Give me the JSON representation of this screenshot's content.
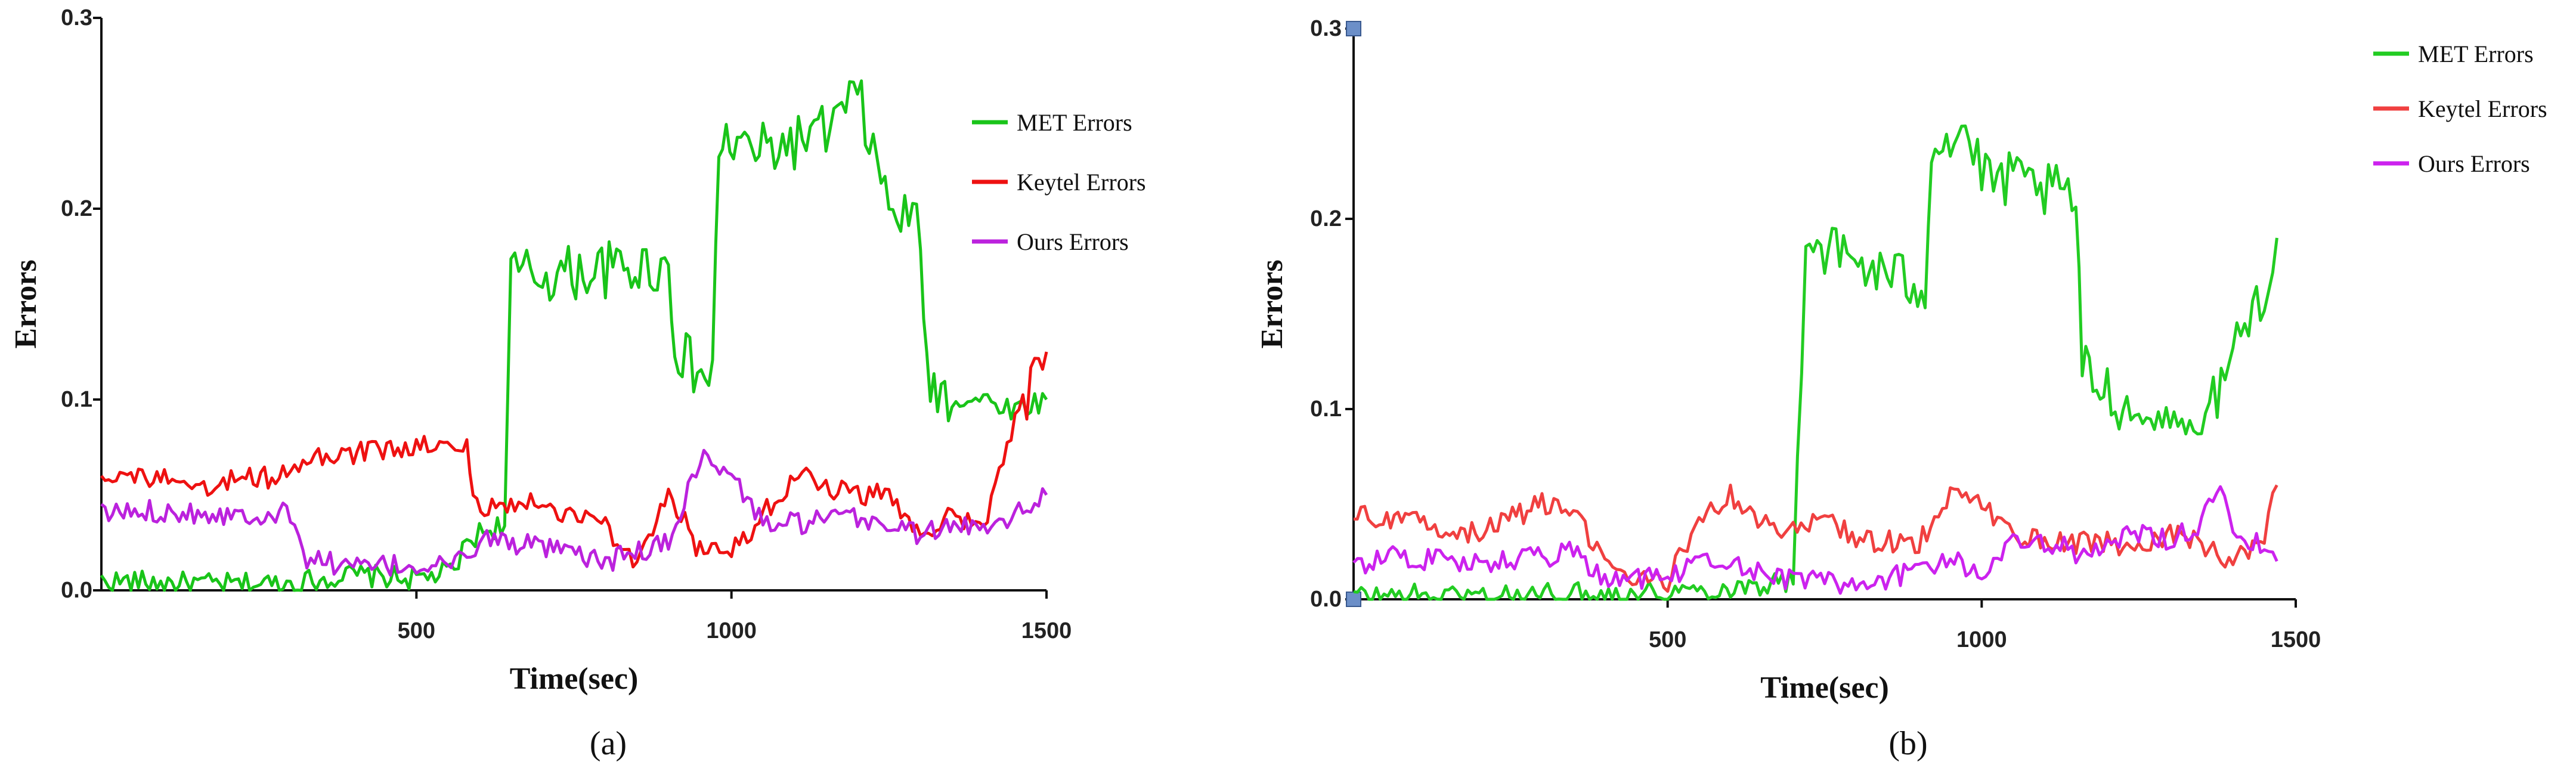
{
  "chart_data": [
    {
      "type": "line",
      "panel_label": "(a)",
      "xlabel": "Time(sec)",
      "ylabel": "Errors",
      "xlim": [
        0,
        1500
      ],
      "ylim": [
        0,
        0.3
      ],
      "x_ticks": [
        "500",
        "1000",
        "1500"
      ],
      "y_ticks": [
        "0.0",
        "0.1",
        "0.2",
        "0.3"
      ],
      "legend_position": "upper-right",
      "grid": false,
      "series": [
        {
          "name": "MET Errors",
          "color": "#19c419",
          "points": [
            [
              0,
              0.005
            ],
            [
              100,
              0.004
            ],
            [
              200,
              0.003
            ],
            [
              300,
              0.004
            ],
            [
              400,
              0.008
            ],
            [
              500,
              0.006
            ],
            [
              560,
              0.01
            ],
            [
              580,
              0.025
            ],
            [
              600,
              0.03
            ],
            [
              640,
              0.035
            ],
            [
              650,
              0.165
            ],
            [
              700,
              0.165
            ],
            [
              800,
              0.168
            ],
            [
              900,
              0.17
            ],
            [
              910,
              0.13
            ],
            [
              940,
              0.115
            ],
            [
              970,
              0.11
            ],
            [
              980,
              0.235
            ],
            [
              1050,
              0.23
            ],
            [
              1100,
              0.235
            ],
            [
              1150,
              0.24
            ],
            [
              1200,
              0.26
            ],
            [
              1250,
              0.2
            ],
            [
              1300,
              0.19
            ],
            [
              1310,
              0.11
            ],
            [
              1350,
              0.1
            ],
            [
              1400,
              0.1
            ],
            [
              1450,
              0.095
            ],
            [
              1500,
              0.1
            ]
          ]
        },
        {
          "name": "Keytel Errors",
          "color": "#ee1111",
          "points": [
            [
              0,
              0.062
            ],
            [
              100,
              0.058
            ],
            [
              150,
              0.05
            ],
            [
              200,
              0.058
            ],
            [
              300,
              0.06
            ],
            [
              320,
              0.068
            ],
            [
              400,
              0.072
            ],
            [
              500,
              0.075
            ],
            [
              580,
              0.075
            ],
            [
              590,
              0.045
            ],
            [
              650,
              0.045
            ],
            [
              700,
              0.045
            ],
            [
              750,
              0.04
            ],
            [
              800,
              0.035
            ],
            [
              850,
              0.01
            ],
            [
              900,
              0.05
            ],
            [
              920,
              0.04
            ],
            [
              950,
              0.02
            ],
            [
              1000,
              0.02
            ],
            [
              1050,
              0.04
            ],
            [
              1100,
              0.06
            ],
            [
              1150,
              0.055
            ],
            [
              1200,
              0.05
            ],
            [
              1250,
              0.05
            ],
            [
              1300,
              0.03
            ],
            [
              1350,
              0.04
            ],
            [
              1400,
              0.03
            ],
            [
              1450,
              0.09
            ],
            [
              1500,
              0.125
            ]
          ]
        },
        {
          "name": "Ours Errors",
          "color": "#bb22dd",
          "points": [
            [
              0,
              0.04
            ],
            [
              100,
              0.042
            ],
            [
              200,
              0.04
            ],
            [
              300,
              0.04
            ],
            [
              320,
              0.018
            ],
            [
              400,
              0.012
            ],
            [
              500,
              0.013
            ],
            [
              580,
              0.015
            ],
            [
              600,
              0.028
            ],
            [
              700,
              0.022
            ],
            [
              800,
              0.015
            ],
            [
              900,
              0.025
            ],
            [
              950,
              0.07
            ],
            [
              1000,
              0.06
            ],
            [
              1050,
              0.035
            ],
            [
              1100,
              0.035
            ],
            [
              1200,
              0.038
            ],
            [
              1300,
              0.03
            ],
            [
              1400,
              0.035
            ],
            [
              1450,
              0.04
            ],
            [
              1500,
              0.05
            ]
          ]
        }
      ]
    },
    {
      "type": "line",
      "panel_label": "(b)",
      "xlabel": "Time(sec)",
      "ylabel": "Errors",
      "xlim": [
        0,
        1500
      ],
      "ylim": [
        0,
        0.3
      ],
      "x_ticks": [
        "500",
        "1000",
        "1500"
      ],
      "y_ticks": [
        "0.0",
        "0.1",
        "0.2",
        "0.3"
      ],
      "legend_position": "upper-right",
      "grid": false,
      "series": [
        {
          "name": "MET Errors",
          "color": "#22cc22",
          "points": [
            [
              0,
              0.002
            ],
            [
              200,
              0.002
            ],
            [
              400,
              0.003
            ],
            [
              500,
              0.004
            ],
            [
              600,
              0.006
            ],
            [
              700,
              0.01
            ],
            [
              720,
              0.19
            ],
            [
              780,
              0.18
            ],
            [
              850,
              0.17
            ],
            [
              910,
              0.165
            ],
            [
              920,
              0.24
            ],
            [
              980,
              0.245
            ],
            [
              1000,
              0.22
            ],
            [
              1050,
              0.22
            ],
            [
              1100,
              0.215
            ],
            [
              1150,
              0.21
            ],
            [
              1160,
              0.12
            ],
            [
              1200,
              0.11
            ],
            [
              1250,
              0.095
            ],
            [
              1300,
              0.095
            ],
            [
              1350,
              0.09
            ],
            [
              1400,
              0.13
            ],
            [
              1450,
              0.165
            ],
            [
              1470,
              0.19
            ]
          ]
        },
        {
          "name": "Keytel Errors",
          "color": "#f04040",
          "points": [
            [
              0,
              0.045
            ],
            [
              100,
              0.04
            ],
            [
              200,
              0.035
            ],
            [
              300,
              0.05
            ],
            [
              350,
              0.045
            ],
            [
              400,
              0.02
            ],
            [
              450,
              0.01
            ],
            [
              500,
              0.01
            ],
            [
              550,
              0.04
            ],
            [
              600,
              0.055
            ],
            [
              650,
              0.04
            ],
            [
              700,
              0.035
            ],
            [
              750,
              0.045
            ],
            [
              800,
              0.03
            ],
            [
              900,
              0.03
            ],
            [
              950,
              0.055
            ],
            [
              1000,
              0.05
            ],
            [
              1050,
              0.035
            ],
            [
              1100,
              0.03
            ],
            [
              1150,
              0.03
            ],
            [
              1200,
              0.03
            ],
            [
              1250,
              0.025
            ],
            [
              1300,
              0.035
            ],
            [
              1350,
              0.03
            ],
            [
              1400,
              0.02
            ],
            [
              1450,
              0.03
            ],
            [
              1470,
              0.06
            ]
          ]
        },
        {
          "name": "Ours Errors",
          "color": "#cc22ee",
          "points": [
            [
              0,
              0.015
            ],
            [
              50,
              0.025
            ],
            [
              100,
              0.02
            ],
            [
              150,
              0.022
            ],
            [
              200,
              0.018
            ],
            [
              250,
              0.02
            ],
            [
              300,
              0.022
            ],
            [
              350,
              0.025
            ],
            [
              400,
              0.01
            ],
            [
              500,
              0.012
            ],
            [
              550,
              0.018
            ],
            [
              600,
              0.02
            ],
            [
              650,
              0.015
            ],
            [
              700,
              0.01
            ],
            [
              750,
              0.01
            ],
            [
              800,
              0.008
            ],
            [
              900,
              0.015
            ],
            [
              950,
              0.02
            ],
            [
              1000,
              0.015
            ],
            [
              1050,
              0.03
            ],
            [
              1100,
              0.03
            ],
            [
              1150,
              0.025
            ],
            [
              1200,
              0.03
            ],
            [
              1250,
              0.035
            ],
            [
              1300,
              0.03
            ],
            [
              1350,
              0.04
            ],
            [
              1380,
              0.06
            ],
            [
              1400,
              0.03
            ],
            [
              1450,
              0.03
            ],
            [
              1470,
              0.02
            ]
          ]
        }
      ]
    }
  ]
}
